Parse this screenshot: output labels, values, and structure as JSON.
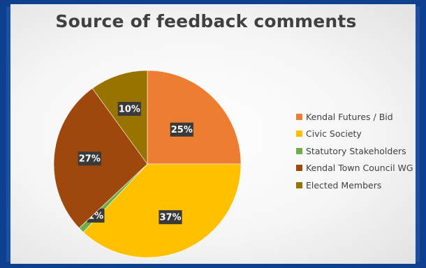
{
  "chart_data": {
    "type": "pie",
    "title": "Source of feedback comments",
    "categories": [
      "Kendal Futures / Bid",
      "Civic Society",
      "Statutory Stakeholders",
      "Kendal Town Council WG",
      "Elected Members"
    ],
    "values": [
      25,
      37,
      1,
      27,
      10
    ],
    "data_labels": [
      "25%",
      "37%",
      "1%",
      "27%",
      "10%"
    ],
    "colors": [
      "#ed7d31",
      "#ffc000",
      "#70ad47",
      "#9e480e",
      "#997300"
    ],
    "legend_position": "right",
    "start_angle": "top, clockwise"
  }
}
